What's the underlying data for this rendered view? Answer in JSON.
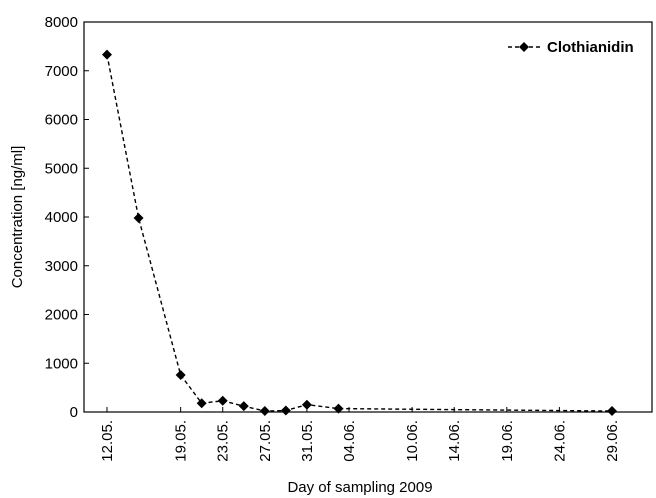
{
  "chart_data": {
    "type": "line",
    "xlabel": "Day of sampling 2009",
    "ylabel": "Concentration [ng/ml]",
    "ylim": [
      0,
      8000
    ],
    "yticks": [
      "0",
      "1000",
      "2000",
      "3000",
      "4000",
      "5000",
      "6000",
      "7000",
      "8000"
    ],
    "xticks": [
      "12.05.",
      "19.05.",
      "23.05.",
      "27.05.",
      "31.05.",
      "04.06.",
      "10.06.",
      "14.06.",
      "19.06.",
      "24.06.",
      "29.06."
    ],
    "grid": false,
    "legend_position": "top-right",
    "series": [
      {
        "name": "Clothianidin",
        "line_style": "dashed",
        "marker": "diamond",
        "color": "#000000",
        "x": [
          "12.05.",
          "15.05.",
          "19.05.",
          "21.05.",
          "23.05.",
          "25.05.",
          "27.05.",
          "29.05.",
          "31.05.",
          "03.06.",
          "29.06."
        ],
        "values": [
          7330,
          3980,
          760,
          180,
          230,
          120,
          20,
          30,
          150,
          70,
          20
        ]
      }
    ]
  }
}
